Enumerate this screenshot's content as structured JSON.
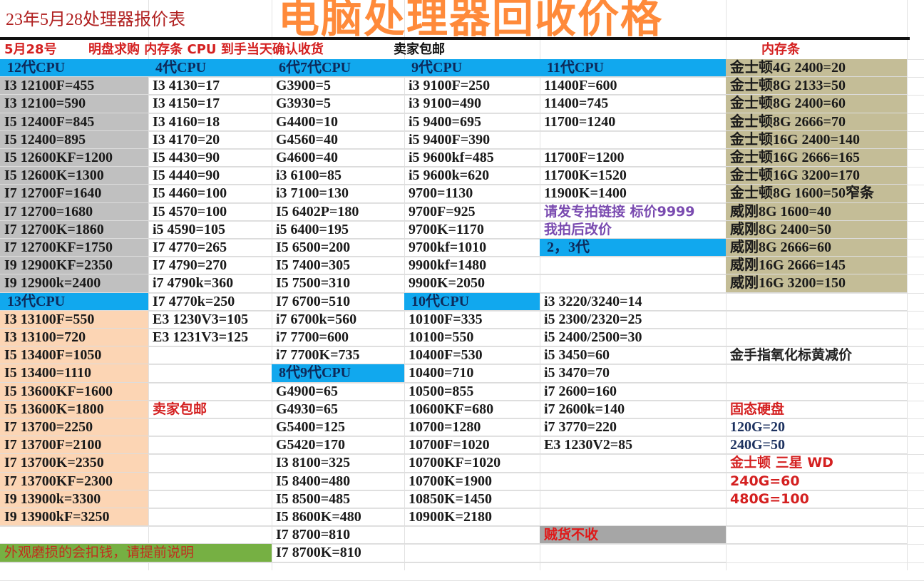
{
  "title": {
    "overlay": "电脑处理器回收价格",
    "sheet_title": "23年5月28处理器报价表"
  },
  "notice": {
    "date": "5月28号",
    "terms": "明盘求购 内存条 CPU 到手当天确认收货",
    "shipping": "卖家包邮",
    "ram_header": "内存条"
  },
  "colors": {
    "header_blue": "#11a8ee",
    "gen12_bg": "#c0c0c0",
    "gen13_bg": "#fcd5b4",
    "ram_bg": "#c4bd97",
    "note_green": "#76b043",
    "title_orange": "#ff8a3a"
  },
  "columns": [
    {
      "cells": [
        {
          "t": "12代CPU",
          "s": "hdr"
        },
        {
          "t": "I3 12100F=455"
        },
        {
          "t": "I3 12100=590"
        },
        {
          "t": "I5 12400F=845"
        },
        {
          "t": "I5 12400=895"
        },
        {
          "t": "I5 12600KF=1200"
        },
        {
          "t": "I5 12600K=1300"
        },
        {
          "t": "I7 12700F=1640"
        },
        {
          "t": "I7 12700=1680"
        },
        {
          "t": "I7 12700K=1860"
        },
        {
          "t": "I7 12700KF=1750"
        },
        {
          "t": "I9 12900KF=2350"
        },
        {
          "t": "I9 12900k=2400"
        },
        {
          "t": "13代CPU",
          "s": "hdr"
        },
        {
          "t": "I3 13100F=550"
        },
        {
          "t": "I3 13100=720"
        },
        {
          "t": "I5 13400F=1050"
        },
        {
          "t": "I5 13400=1110"
        },
        {
          "t": "I5 13600KF=1600"
        },
        {
          "t": "I5 13600K=1800"
        },
        {
          "t": "I7 13700=2250"
        },
        {
          "t": "I7 13700F=2100"
        },
        {
          "t": "I7 13700K=2350"
        },
        {
          "t": "I7 13700KF=2300"
        },
        {
          "t": "I9 13900k=3300"
        },
        {
          "t": "I9 13900kF=3250"
        },
        {
          "t": ""
        },
        {
          "t": "外观磨损的会扣钱，请提前说明",
          "s": "green"
        }
      ]
    },
    {
      "cells": [
        {
          "t": "4代CPU",
          "s": "hdr"
        },
        {
          "t": "I3 4130=17"
        },
        {
          "t": "I3 4150=17"
        },
        {
          "t": "I3 4160=18"
        },
        {
          "t": "I3 4170=20"
        },
        {
          "t": "I5 4430=90"
        },
        {
          "t": "I5 4440=90"
        },
        {
          "t": "I5 4460=100"
        },
        {
          "t": "I5 4570=100"
        },
        {
          "t": "i5 4590=105"
        },
        {
          "t": "I7 4770=265"
        },
        {
          "t": "I7 4790=270"
        },
        {
          "t": "i7 4790k=360"
        },
        {
          "t": "I7 4770k=250"
        },
        {
          "t": "E3 1230V3=105"
        },
        {
          "t": "E3 1231V3=125"
        },
        {
          "t": ""
        },
        {
          "t": ""
        },
        {
          "t": ""
        },
        {
          "t": "卖家包邮",
          "s": "red"
        },
        {
          "t": ""
        },
        {
          "t": ""
        },
        {
          "t": ""
        },
        {
          "t": ""
        },
        {
          "t": ""
        },
        {
          "t": ""
        },
        {
          "t": ""
        },
        {
          "t": ""
        }
      ]
    },
    {
      "cells": [
        {
          "t": "6代7代CPU",
          "s": "hdr"
        },
        {
          "t": "G3900=5"
        },
        {
          "t": "G3930=5"
        },
        {
          "t": "G4400=10"
        },
        {
          "t": "G4560=40"
        },
        {
          "t": "G4600=40"
        },
        {
          "t": "i3 6100=85"
        },
        {
          "t": "i3 7100=130"
        },
        {
          "t": "I5 6402P=180"
        },
        {
          "t": "i5 6400=195"
        },
        {
          "t": "I5 6500=200"
        },
        {
          "t": "I5 7400=305"
        },
        {
          "t": "I5 7500=310"
        },
        {
          "t": "I7 6700=510"
        },
        {
          "t": "i7 6700k=560"
        },
        {
          "t": "i7 7700=600"
        },
        {
          "t": "i7 7700K=735"
        },
        {
          "t": "8代9代CPU",
          "s": "hdr"
        },
        {
          "t": "G4900=65"
        },
        {
          "t": "G4930=65"
        },
        {
          "t": "G5400=125"
        },
        {
          "t": "G5420=170"
        },
        {
          "t": "I3 8100=325"
        },
        {
          "t": "I5 8400=480"
        },
        {
          "t": "I5 8500=485"
        },
        {
          "t": "I5 8600K=480"
        },
        {
          "t": "I7 8700=810"
        },
        {
          "t": "I7 8700K=810"
        }
      ]
    },
    {
      "cells": [
        {
          "t": "9代CPU",
          "s": "hdr"
        },
        {
          "t": "i3 9100F=250"
        },
        {
          "t": "i3 9100=490"
        },
        {
          "t": "i5 9400=695"
        },
        {
          "t": "i5 9400F=390"
        },
        {
          "t": "i5 9600kf=485"
        },
        {
          "t": "i5 9600k=620"
        },
        {
          "t": " 9700=1130"
        },
        {
          "t": "9700F=925"
        },
        {
          "t": "9700K=1170"
        },
        {
          "t": "9700kf=1010"
        },
        {
          "t": "9900kf=1480"
        },
        {
          "t": "9900K=2050"
        },
        {
          "t": "10代CPU",
          "s": "hdr"
        },
        {
          "t": " 10100F=335"
        },
        {
          "t": " 10100=550"
        },
        {
          "t": " 10400F=530"
        },
        {
          "t": " 10400=710"
        },
        {
          "t": " 10500=855"
        },
        {
          "t": " 10600KF=680"
        },
        {
          "t": " 10700=1280"
        },
        {
          "t": " 10700F=1020"
        },
        {
          "t": " 10700KF=1020"
        },
        {
          "t": " 10700K=1900"
        },
        {
          "t": "10850K=1450"
        },
        {
          "t": "10900K=2180"
        },
        {
          "t": ""
        },
        {
          "t": ""
        }
      ]
    },
    {
      "cells": [
        {
          "t": "11代CPU",
          "s": "hdr"
        },
        {
          "t": "11400F=600"
        },
        {
          "t": "11400=745"
        },
        {
          "t": "11700=1240"
        },
        {
          "t": ""
        },
        {
          "t": "11700F=1200"
        },
        {
          "t": "11700K=1520"
        },
        {
          "t": "11900K=1400"
        },
        {
          "t": "请发专拍链接 标价9999",
          "s": "purple"
        },
        {
          "t": "我拍后改价",
          "s": "purple"
        },
        {
          "t": "2，3代",
          "s": "hdr"
        },
        {
          "t": ""
        },
        {
          "t": ""
        },
        {
          "t": "i3 3220/3240=14"
        },
        {
          "t": "i5 2300/2320=25"
        },
        {
          "t": "i5 2400/2500=30"
        },
        {
          "t": "i5 3450=60"
        },
        {
          "t": "i5 3470=70"
        },
        {
          "t": "i7 2600=160"
        },
        {
          "t": "i7 2600k=140"
        },
        {
          "t": "i7 3770=220"
        },
        {
          "t": "E3 1230V2=85"
        },
        {
          "t": ""
        },
        {
          "t": ""
        },
        {
          "t": ""
        },
        {
          "t": ""
        },
        {
          "t": "贼货不收",
          "s": "gray"
        },
        {
          "t": ""
        }
      ]
    },
    {
      "cells": [
        {
          "t": "金士顿4G 2400=20"
        },
        {
          "t": "金士顿8G 2133=50"
        },
        {
          "t": "金士顿8G 2400=60"
        },
        {
          "t": "金士顿8G 2666=70"
        },
        {
          "t": "金士顿16G 2400=140"
        },
        {
          "t": "金士顿16G 2666=165"
        },
        {
          "t": "金士顿16G 3200=170"
        },
        {
          "t": "金士顿8G 1600=50窄条"
        },
        {
          "t": "威刚8G 1600=40"
        },
        {
          "t": "威刚8G 2400=50"
        },
        {
          "t": "威刚8G 2666=60"
        },
        {
          "t": "威刚16G 2666=145"
        },
        {
          "t": "威刚16G 3200=150"
        },
        {
          "t": ""
        },
        {
          "t": ""
        },
        {
          "t": ""
        },
        {
          "t": "   金手指氧化标黄减价",
          "s": "dark"
        },
        {
          "t": ""
        },
        {
          "t": ""
        },
        {
          "t": "      固态硬盘",
          "s": "red"
        },
        {
          "t": "120G=20",
          "s": "navy"
        },
        {
          "t": "240G=50",
          "s": "navy"
        },
        {
          "t": "  金士顿 三星 WD",
          "s": "red"
        },
        {
          "t": "   240G=60",
          "s": "red"
        },
        {
          "t": "   480G=100",
          "s": "red"
        },
        {
          "t": ""
        },
        {
          "t": ""
        }
      ]
    }
  ]
}
